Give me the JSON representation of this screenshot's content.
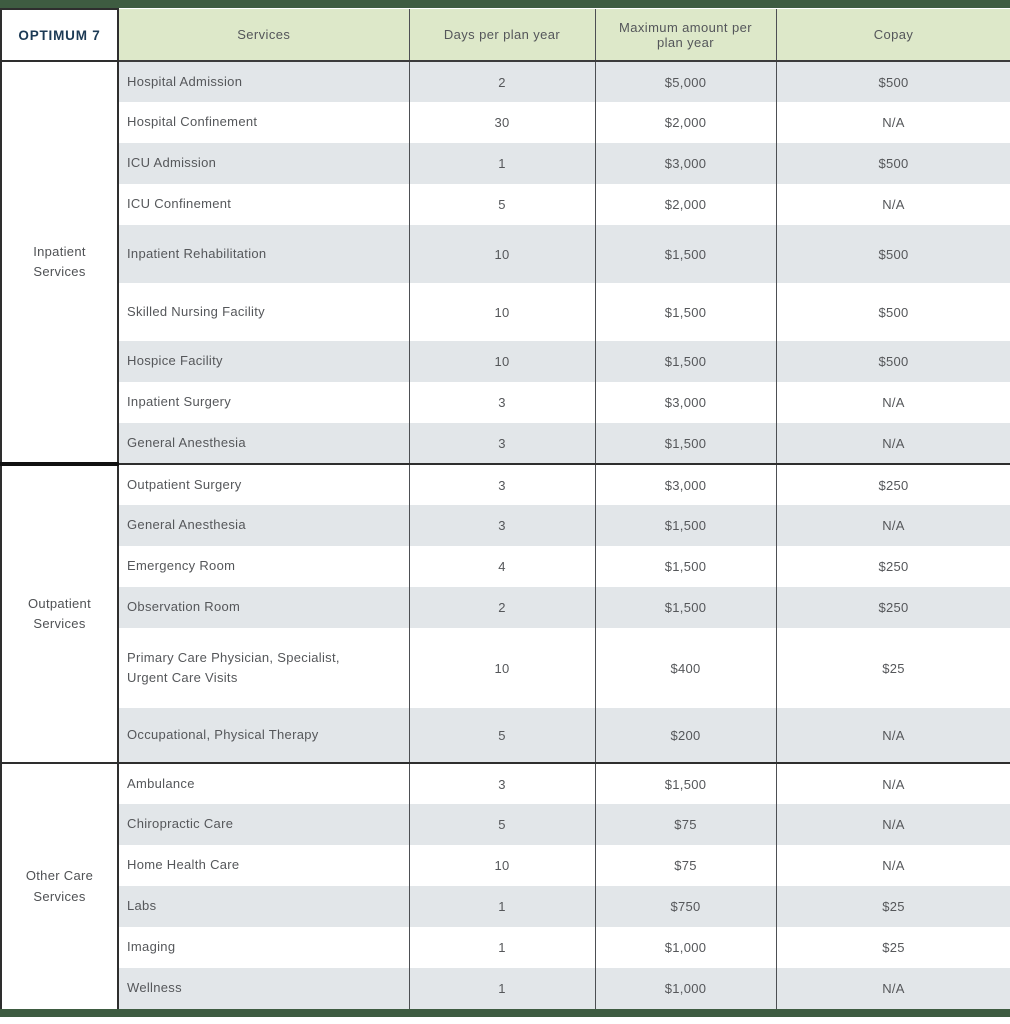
{
  "plan": {
    "name": "OPTIMUM 7"
  },
  "table": {
    "headers": {
      "services": "Services",
      "days": "Days per plan year",
      "max": "Maximum amount per plan year",
      "copay": "Copay"
    },
    "groups": [
      {
        "label": "Inpatient Services",
        "rows": [
          {
            "service": "Hospital Admission",
            "days": "2",
            "max": "$5,000",
            "copay": "$500"
          },
          {
            "service": "Hospital Confinement",
            "days": "30",
            "max": "$2,000",
            "copay": "N/A"
          },
          {
            "service": "ICU Admission",
            "days": "1",
            "max": "$3,000",
            "copay": "$500"
          },
          {
            "service": "ICU Confinement",
            "days": "5",
            "max": "$2,000",
            "copay": "N/A"
          },
          {
            "service": "Inpatient Rehabilitation",
            "days": "10",
            "max": "$1,500",
            "copay": "$500"
          },
          {
            "service": "Skilled Nursing Facility",
            "days": "10",
            "max": "$1,500",
            "copay": "$500"
          },
          {
            "service": "Hospice Facility",
            "days": "10",
            "max": "$1,500",
            "copay": "$500"
          },
          {
            "service": "Inpatient Surgery",
            "days": "3",
            "max": "$3,000",
            "copay": "N/A"
          },
          {
            "service": "General Anesthesia",
            "days": "3",
            "max": "$1,500",
            "copay": "N/A"
          }
        ]
      },
      {
        "label": "Outpatient Services",
        "rows": [
          {
            "service": "Outpatient Surgery",
            "days": "3",
            "max": "$3,000",
            "copay": "$250"
          },
          {
            "service": "General Anesthesia",
            "days": "3",
            "max": "$1,500",
            "copay": "N/A"
          },
          {
            "service": "Emergency Room",
            "days": "4",
            "max": "$1,500",
            "copay": "$250"
          },
          {
            "service": "Observation Room",
            "days": "2",
            "max": "$1,500",
            "copay": "$250"
          },
          {
            "service": "Primary Care Physician, Specialist, Urgent Care Visits",
            "days": "10",
            "max": "$400",
            "copay": "$25"
          },
          {
            "service": "Occupational, Physical Therapy",
            "days": "5",
            "max": "$200",
            "copay": "N/A"
          }
        ]
      },
      {
        "label": "Other Care Services",
        "rows": [
          {
            "service": "Ambulance",
            "days": "3",
            "max": "$1,500",
            "copay": "N/A"
          },
          {
            "service": "Chiropractic Care",
            "days": "5",
            "max": "$75",
            "copay": "N/A"
          },
          {
            "service": "Home Health Care",
            "days": "10",
            "max": "$75",
            "copay": "N/A"
          },
          {
            "service": "Labs",
            "days": "1",
            "max": "$750",
            "copay": "$25"
          },
          {
            "service": "Imaging",
            "days": "1",
            "max": "$1,000",
            "copay": "$25"
          },
          {
            "service": "Wellness",
            "days": "1",
            "max": "$1,000",
            "copay": "N/A"
          }
        ]
      }
    ]
  },
  "colors": {
    "accent_bar": "#3e5c41",
    "header_background": "#dde8c9",
    "shaded_row_background": "#e2e6e9",
    "plan_name_color": "#1c3a55",
    "text_color": "#55575a"
  }
}
